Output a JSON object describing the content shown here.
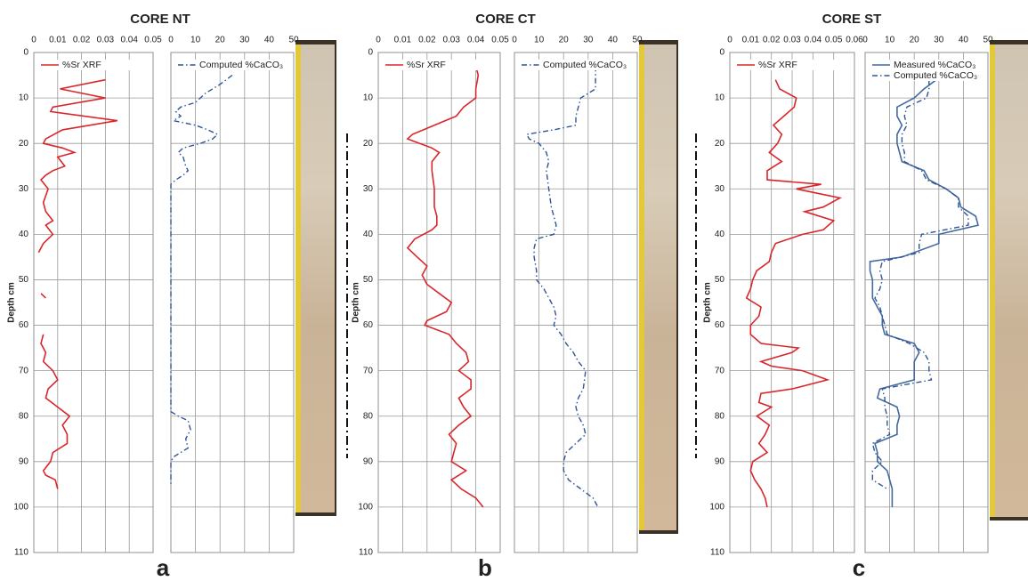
{
  "panels": [
    {
      "title": "CORE NT",
      "label": "a"
    },
    {
      "title": "CORE CT",
      "label": "b"
    },
    {
      "title": "CORE ST",
      "label": "c"
    }
  ],
  "chart_data": [
    {
      "type": "line",
      "ylabel": "Depth cm",
      "show_ytick_labels": true,
      "grid": true,
      "legend": "upper left",
      "xlim": [
        0,
        0.05
      ],
      "xticks": [
        0,
        0.01,
        0.02,
        0.03,
        0.04,
        0.05
      ],
      "ylim": [
        110,
        0
      ],
      "yticks": [
        0,
        10,
        20,
        30,
        40,
        50,
        60,
        70,
        80,
        90,
        100,
        110
      ],
      "series": [
        {
          "name": "%Sr XRF",
          "color": "#d9262b",
          "line_style": "solid",
          "depth": [
            6,
            8,
            10,
            12,
            13,
            15,
            17,
            19,
            20,
            21,
            22,
            23,
            25,
            26,
            27,
            28,
            30,
            33,
            35,
            37,
            38,
            40,
            42,
            44,
            null,
            53,
            54,
            null,
            62,
            64,
            66,
            68,
            70,
            72,
            74,
            76,
            78,
            80,
            82,
            84,
            86,
            88,
            90,
            92,
            93,
            94,
            96
          ],
          "values": [
            0.03,
            0.011,
            0.03,
            0.008,
            0.007,
            0.035,
            0.012,
            0.005,
            0.004,
            0.012,
            0.017,
            0.01,
            0.013,
            0.008,
            0.005,
            0.003,
            0.006,
            0.004,
            0.005,
            0.008,
            0.005,
            0.008,
            0.004,
            0.002,
            null,
            0.003,
            0.005,
            null,
            0.004,
            0.003,
            0.005,
            0.004,
            0.008,
            0.01,
            0.006,
            0.005,
            0.01,
            0.015,
            0.012,
            0.014,
            0.014,
            0.008,
            0.007,
            0.004,
            0.005,
            0.009,
            0.01
          ]
        }
      ]
    },
    {
      "type": "line",
      "show_ytick_labels": false,
      "grid": true,
      "legend": "upper left",
      "xlim": [
        0,
        50
      ],
      "xticks": [
        0,
        10,
        20,
        30,
        40,
        50
      ],
      "ylim": [
        110,
        0
      ],
      "yticks": [
        0,
        10,
        20,
        30,
        40,
        50,
        60,
        70,
        80,
        90,
        100,
        110
      ],
      "series": [
        {
          "name": "Computed %CaCO₃",
          "color": "#2f5597",
          "line_style": "dash-dot",
          "depth": [
            5,
            7,
            9,
            11,
            12,
            13,
            14,
            15,
            16,
            17,
            18,
            19,
            20,
            21,
            22,
            23,
            25,
            26,
            27,
            28,
            29,
            35,
            79,
            80,
            81,
            83,
            85,
            87,
            88,
            89,
            90,
            95
          ],
          "values": [
            25,
            20,
            14,
            10,
            4,
            2,
            4,
            1,
            10,
            15,
            19,
            17,
            12,
            5,
            3,
            5,
            6,
            7,
            5,
            2,
            0,
            0,
            0,
            3,
            7,
            8,
            6,
            7,
            4,
            1,
            0,
            0
          ]
        }
      ]
    },
    {
      "type": "line",
      "ylabel": "Depth cm",
      "show_ytick_labels": true,
      "grid": true,
      "legend": "upper left",
      "xlim": [
        0,
        0.05
      ],
      "xticks": [
        0,
        0.01,
        0.02,
        0.03,
        0.04,
        0.05
      ],
      "ylim": [
        110,
        0
      ],
      "yticks": [
        0,
        10,
        20,
        30,
        40,
        50,
        60,
        70,
        80,
        90,
        100,
        110
      ],
      "series": [
        {
          "name": "%Sr XRF",
          "color": "#d9262b",
          "line_style": "solid",
          "depth": [
            3,
            5,
            8,
            10,
            12,
            14,
            16,
            18,
            19,
            20,
            21,
            22,
            24,
            26,
            30,
            34,
            36,
            38,
            39,
            41,
            43,
            45,
            47,
            49,
            51,
            53,
            55,
            57,
            59,
            60,
            62,
            64,
            66,
            68,
            70,
            72,
            74,
            76,
            78,
            80,
            82,
            84,
            86,
            88,
            90,
            92,
            94,
            96,
            98,
            100
          ],
          "values": [
            0.04,
            0.041,
            0.04,
            0.04,
            0.035,
            0.032,
            0.023,
            0.014,
            0.012,
            0.017,
            0.022,
            0.025,
            0.022,
            0.022,
            0.023,
            0.023,
            0.024,
            0.024,
            0.022,
            0.015,
            0.012,
            0.016,
            0.02,
            0.018,
            0.02,
            0.025,
            0.03,
            0.028,
            0.02,
            0.019,
            0.029,
            0.032,
            0.036,
            0.037,
            0.033,
            0.038,
            0.038,
            0.033,
            0.035,
            0.038,
            0.033,
            0.029,
            0.032,
            0.031,
            0.03,
            0.036,
            0.03,
            0.034,
            0.04,
            0.043
          ]
        }
      ]
    },
    {
      "type": "line",
      "show_ytick_labels": false,
      "grid": true,
      "legend": "upper left",
      "xlim": [
        0,
        50
      ],
      "xticks": [
        0,
        10,
        20,
        30,
        40,
        50
      ],
      "ylim": [
        110,
        0
      ],
      "yticks": [
        0,
        10,
        20,
        30,
        40,
        50,
        60,
        70,
        80,
        90,
        100,
        110
      ],
      "series": [
        {
          "name": "Computed %CaCO₃",
          "color": "#2f5597",
          "line_style": "dash-dot",
          "depth": [
            3,
            5,
            8,
            10,
            12,
            14,
            16,
            17,
            18,
            19,
            20,
            22,
            24,
            26,
            30,
            34,
            38,
            40,
            41,
            43,
            45,
            48,
            50,
            52,
            54,
            56,
            58,
            60,
            62,
            64,
            66,
            68,
            70,
            74,
            76,
            78,
            80,
            82,
            84,
            86,
            88,
            90,
            92,
            94,
            96,
            98,
            100
          ],
          "values": [
            33,
            33,
            33,
            27,
            26,
            25,
            25,
            16,
            5,
            6,
            10,
            13,
            14,
            13,
            14,
            15,
            17,
            16,
            9,
            8,
            8,
            9,
            9,
            12,
            14,
            16,
            17,
            16,
            19,
            21,
            24,
            26,
            29,
            28,
            26,
            25,
            26,
            28,
            29,
            25,
            21,
            20,
            20,
            22,
            27,
            32,
            34
          ]
        }
      ]
    },
    {
      "type": "line",
      "ylabel": "Depth cm",
      "show_ytick_labels": true,
      "grid": true,
      "legend": "upper left",
      "xlim": [
        0,
        0.06
      ],
      "xticks": [
        0,
        0.01,
        0.02,
        0.03,
        0.04,
        0.05,
        0.06
      ],
      "ylim": [
        110,
        0
      ],
      "yticks": [
        0,
        10,
        20,
        30,
        40,
        50,
        60,
        70,
        80,
        90,
        100,
        110
      ],
      "series": [
        {
          "name": "%Sr XRF",
          "color": "#d9262b",
          "line_style": "solid",
          "depth": [
            6,
            8,
            10,
            12,
            14,
            16,
            18,
            20,
            22,
            24,
            26,
            28,
            29,
            30,
            32,
            34,
            35,
            37,
            39,
            40,
            42,
            44,
            46,
            48,
            50,
            52,
            54,
            56,
            58,
            60,
            62,
            64,
            65,
            66,
            68,
            69,
            70,
            72,
            74,
            75,
            77,
            78,
            80,
            82,
            84,
            86,
            88,
            90,
            92,
            94,
            96,
            98,
            100
          ],
          "values": [
            0.022,
            0.024,
            0.032,
            0.031,
            0.026,
            0.021,
            0.025,
            0.023,
            0.019,
            0.025,
            0.018,
            0.018,
            0.044,
            0.032,
            0.053,
            0.045,
            0.036,
            0.05,
            0.045,
            0.035,
            0.022,
            0.02,
            0.019,
            0.013,
            0.011,
            0.01,
            0.008,
            0.015,
            0.014,
            0.01,
            0.01,
            0.015,
            0.033,
            0.03,
            0.015,
            0.02,
            0.035,
            0.047,
            0.03,
            0.015,
            0.014,
            0.02,
            0.013,
            0.019,
            0.017,
            0.014,
            0.018,
            0.011,
            0.01,
            0.012,
            0.015,
            0.017,
            0.018
          ]
        }
      ]
    },
    {
      "type": "line",
      "show_ytick_labels": false,
      "grid": true,
      "legend": "upper left",
      "xlim": [
        0,
        50
      ],
      "xticks": [
        0,
        10,
        20,
        30,
        40,
        50
      ],
      "ylim": [
        110,
        0
      ],
      "yticks": [
        0,
        10,
        20,
        30,
        40,
        50,
        60,
        70,
        80,
        90,
        100,
        110
      ],
      "series": [
        {
          "name": "Measured %CaCO₃",
          "color": "#44699e",
          "line_style": "solid",
          "depth": [
            6,
            8,
            10,
            12,
            14,
            16,
            18,
            20,
            24,
            26,
            28,
            30,
            32,
            34,
            36,
            38,
            40,
            42,
            45,
            46,
            48,
            50,
            52,
            54,
            56,
            58,
            60,
            62,
            64,
            66,
            68,
            70,
            72,
            74,
            76,
            78,
            80,
            82,
            84,
            86,
            88,
            90,
            92,
            94,
            96,
            98,
            100
          ],
          "values": [
            29,
            24,
            20,
            13,
            13,
            15,
            13,
            13,
            15,
            24,
            26,
            33,
            38,
            39,
            45,
            46,
            30,
            30,
            15,
            2,
            2,
            3,
            3,
            3,
            5,
            7,
            7,
            8,
            20,
            22,
            20,
            20,
            20,
            6,
            5,
            13,
            14,
            13,
            13,
            4,
            5,
            5,
            9,
            10,
            11,
            11,
            11
          ]
        },
        {
          "name": "Computed %CaCO₃",
          "color": "#2f5597",
          "line_style": "dash-dot",
          "depth": [
            6,
            8,
            10,
            12,
            14,
            16,
            18,
            20,
            22,
            24,
            26,
            28,
            30,
            32,
            34,
            36,
            38,
            40,
            42,
            44,
            46,
            48,
            50,
            52,
            54,
            56,
            58,
            60,
            62,
            64,
            66,
            68,
            70,
            72,
            74,
            76,
            78,
            80,
            82,
            84,
            86,
            88,
            90,
            92,
            94,
            95,
            96
          ],
          "values": [
            26,
            26,
            25,
            17,
            16,
            17,
            15,
            15,
            16,
            16,
            23,
            25,
            33,
            38,
            38,
            42,
            42,
            23,
            22,
            22,
            7,
            6,
            7,
            6,
            4,
            6,
            7,
            8,
            9,
            18,
            24,
            26,
            26,
            27,
            7,
            8,
            8,
            9,
            9,
            10,
            3,
            4,
            7,
            3,
            3,
            6,
            9
          ]
        }
      ]
    }
  ]
}
